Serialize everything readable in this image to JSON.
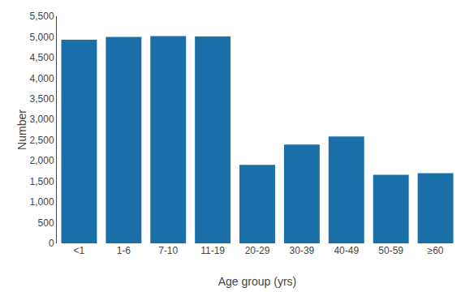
{
  "chart_data": {
    "type": "bar",
    "categories": [
      "<1",
      "1-6",
      "7-10",
      "11-19",
      "20-29",
      "30-39",
      "40-49",
      "50-59",
      "≥60"
    ],
    "values": [
      4930,
      5000,
      5020,
      5010,
      1900,
      2390,
      2590,
      1660,
      1700
    ],
    "color": "#1B6FA8",
    "xlabel": "Age group (yrs)",
    "ylabel": "Number",
    "ylim": [
      0,
      5500
    ],
    "yticks": [
      0,
      500,
      {
        "value": 1000,
        "label": "1,000"
      },
      {
        "value": 1500,
        "label": "1,500"
      },
      {
        "value": 2000,
        "label": "2,000"
      },
      {
        "value": 2500,
        "label": "2,500"
      },
      {
        "value": 3000,
        "label": "3,000"
      },
      {
        "value": 3500,
        "label": "3,500"
      },
      {
        "value": 4000,
        "label": "4,000"
      },
      {
        "value": 4500,
        "label": "4,500"
      },
      {
        "value": 5000,
        "label": "5,000"
      },
      {
        "value": 5500,
        "label": "5,500"
      }
    ],
    "grid": false
  }
}
